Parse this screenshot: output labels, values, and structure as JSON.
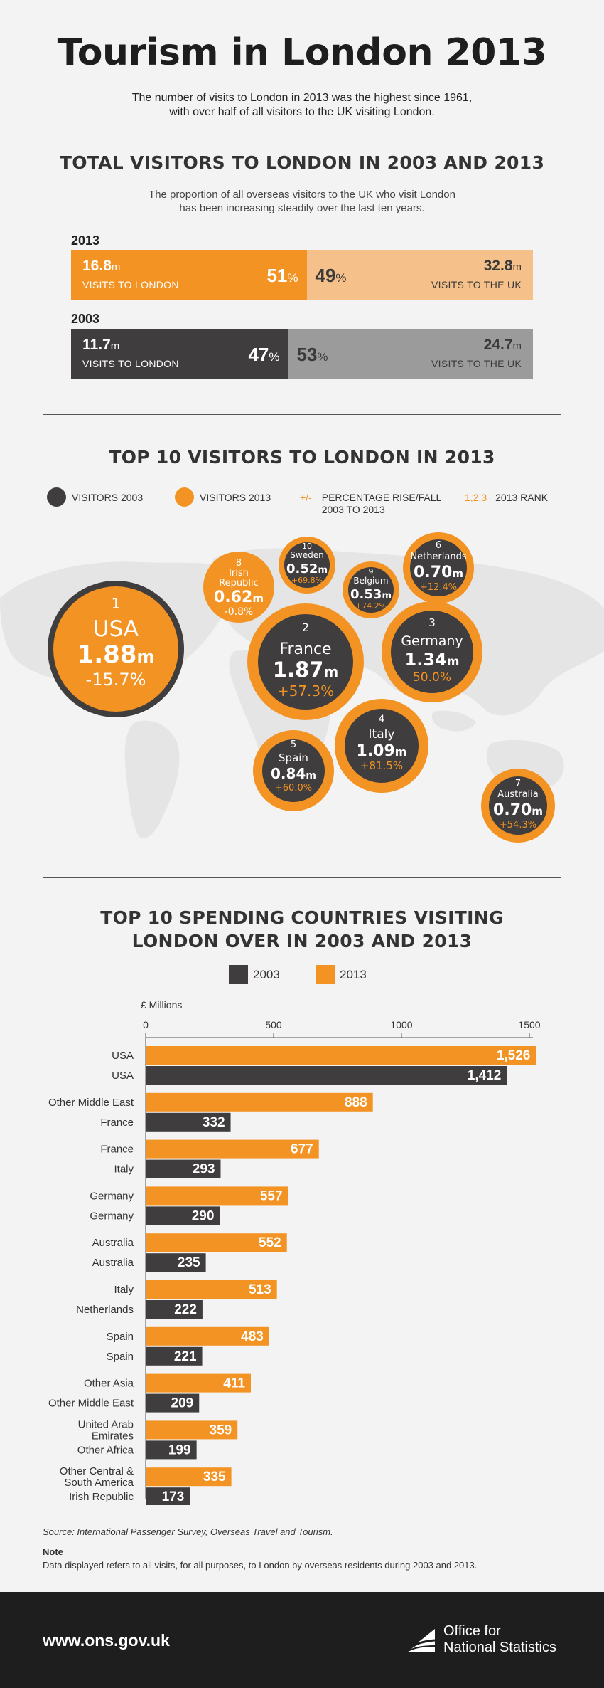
{
  "header": {
    "title": "Tourism in London 2013",
    "intro_line1": "The number of visits to London in 2013 was the highest since 1961,",
    "intro_line2": "with over half of all visitors to the UK visiting London."
  },
  "colors": {
    "orange": "#f39323",
    "light_orange": "#f5c089",
    "dark": "#3f3d3e",
    "grey": "#9c9b9b"
  },
  "section1": {
    "title": "TOTAL VISITORS TO LONDON IN 2003 AND 2013",
    "sub_line1": "The proportion of all overseas visitors to the UK who visit London",
    "sub_line2": "has been increasing steadily over the last ten years.",
    "rows": [
      {
        "year": "2013",
        "london_value": "16.8",
        "london_caption": "VISITS TO LONDON",
        "london_pct": "51",
        "uk_pct": "49",
        "uk_value": "32.8",
        "uk_caption": "VISITS TO THE UK",
        "london_share": 51
      },
      {
        "year": "2003",
        "london_value": "11.7",
        "london_caption": "VISITS TO LONDON",
        "london_pct": "47",
        "uk_pct": "53",
        "uk_value": "24.7",
        "uk_caption": "VISITS TO THE UK",
        "london_share": 47
      }
    ],
    "unit_m": "m",
    "unit_pct": "%"
  },
  "section2": {
    "title": "TOP 10 VISITORS TO LONDON IN 2013",
    "legend": {
      "visitors_2003": "VISITORS 2003",
      "visitors_2013": "VISITORS 2013",
      "plusminus_symbol": "+/-",
      "plusminus_line1": "PERCENTAGE RISE/FALL",
      "plusminus_line2": "2003 TO 2013",
      "rank_symbol": "1,2,3",
      "rank_label": "2013 RANK"
    },
    "countries": [
      {
        "rank": "1",
        "name": "USA",
        "value": "1.88",
        "change": "-15.7%"
      },
      {
        "rank": "2",
        "name": "France",
        "value": "1.87",
        "change": "+57.3%"
      },
      {
        "rank": "3",
        "name": "Germany",
        "value": "1.34",
        "change": "50.0%"
      },
      {
        "rank": "4",
        "name": "Italy",
        "value": "1.09",
        "change": "+81.5%"
      },
      {
        "rank": "5",
        "name": "Spain",
        "value": "0.84",
        "change": "+60.0%"
      },
      {
        "rank": "6",
        "name": "Netherlands",
        "value": "0.70",
        "change": "+12.4%"
      },
      {
        "rank": "7",
        "name": "Australia",
        "value": "0.70",
        "change": "+54.3%"
      },
      {
        "rank": "8",
        "name_line1": "Irish",
        "name_line2": "Republic",
        "value": "0.62",
        "change": "-0.8%"
      },
      {
        "rank": "9",
        "name": "Belgium",
        "value": "0.53",
        "change": "+74.2%"
      },
      {
        "rank": "10",
        "name": "Sweden",
        "value": "0.52",
        "change": "+69.8%"
      }
    ]
  },
  "section3": {
    "title_line1": "TOP 10 SPENDING COUNTRIES VISITING",
    "title_line2": "LONDON OVER IN 2003 AND 2013",
    "legend_2003": "2003",
    "legend_2013": "2013"
  },
  "chart_data": {
    "type": "bar",
    "orientation": "horizontal",
    "title": "TOP 10 SPENDING COUNTRIES VISITING LONDON OVER IN 2003 AND 2013",
    "axis_label": "£ Millions",
    "xlim": [
      0,
      1500
    ],
    "ticks": [
      "0",
      "500",
      "1000",
      "1500"
    ],
    "tick_values": [
      0,
      500,
      1000,
      1500
    ],
    "pairs": [
      {
        "label_2013": "USA",
        "value_2013": 1526,
        "display_2013": "1,526",
        "label_2003": "USA",
        "value_2003": 1412,
        "display_2003": "1,412"
      },
      {
        "label_2013": "Other Middle East",
        "value_2013": 888,
        "display_2013": "888",
        "label_2003": "France",
        "value_2003": 332,
        "display_2003": "332"
      },
      {
        "label_2013": "France",
        "value_2013": 677,
        "display_2013": "677",
        "label_2003": "Italy",
        "value_2003": 293,
        "display_2003": "293"
      },
      {
        "label_2013": "Germany",
        "value_2013": 557,
        "display_2013": "557",
        "label_2003": "Germany",
        "value_2003": 290,
        "display_2003": "290"
      },
      {
        "label_2013": "Australia",
        "value_2013": 552,
        "display_2013": "552",
        "label_2003": "Australia",
        "value_2003": 235,
        "display_2003": "235"
      },
      {
        "label_2013": "Italy",
        "value_2013": 513,
        "display_2013": "513",
        "label_2003": "Netherlands",
        "value_2003": 222,
        "display_2003": "222"
      },
      {
        "label_2013": "Spain",
        "value_2013": 483,
        "display_2013": "483",
        "label_2003": "Spain",
        "value_2003": 221,
        "display_2003": "221"
      },
      {
        "label_2013": "Other Asia",
        "value_2013": 411,
        "display_2013": "411",
        "label_2003": "Other Middle East",
        "value_2003": 209,
        "display_2003": "209"
      },
      {
        "label_2013": [
          "United Arab",
          "Emirates"
        ],
        "value_2013": 359,
        "display_2013": "359",
        "label_2003": "Other Africa",
        "value_2003": 199,
        "display_2003": "199"
      },
      {
        "label_2013": [
          "Other Central &",
          "South America"
        ],
        "value_2013": 335,
        "display_2013": "335",
        "label_2003": "Irish Republic",
        "value_2003": 173,
        "display_2003": "173"
      }
    ],
    "series": [
      {
        "name": "2013",
        "color": "#f39323"
      },
      {
        "name": "2003",
        "color": "#3f3d3e"
      }
    ]
  },
  "source": {
    "text": "Source: International Passenger Survey, Overseas Travel and Tourism.",
    "note_label": "Note",
    "note_text": "Data displayed refers to all visits, for all purposes, to London by overseas residents during 2003 and 2013."
  },
  "footer": {
    "url": "www.ons.gov.uk",
    "logo_line1": "Office for",
    "logo_line2": "National Statistics"
  }
}
